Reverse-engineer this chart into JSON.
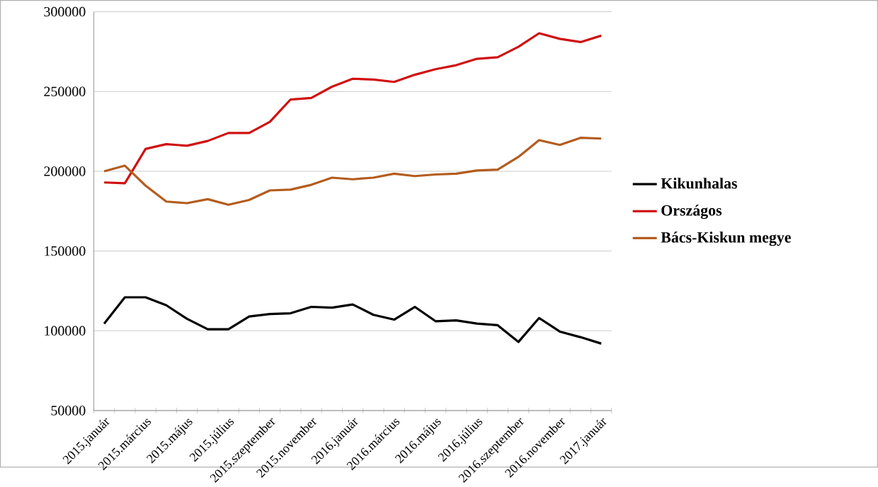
{
  "chart_data": {
    "type": "line",
    "categories": [
      "2015.január",
      null,
      "2015.március",
      null,
      "2015.május",
      null,
      "2015.július",
      null,
      "2015.szeptember",
      null,
      "2015.november",
      null,
      "2016.január",
      null,
      "2016.március",
      null,
      "2016.május",
      null,
      "2016.július",
      null,
      "2016.szeptember",
      null,
      "2016.november",
      null,
      "2017.január"
    ],
    "series": [
      {
        "name": "Kikunhalas",
        "color": "#000000",
        "values": [
          104500,
          121000,
          121000,
          116000,
          107500,
          101000,
          101000,
          109000,
          110500,
          111000,
          115000,
          114500,
          116500,
          110000,
          107000,
          115000,
          106000,
          106500,
          104500,
          103500,
          93000,
          108000,
          99500,
          96000,
          92000
        ]
      },
      {
        "name": "Országos",
        "color": "#d01010",
        "values": [
          193000,
          192500,
          214000,
          217000,
          216000,
          219000,
          224000,
          224000,
          231000,
          245000,
          246000,
          253000,
          258000,
          257500,
          256000,
          260500,
          264000,
          266500,
          270500,
          271500,
          278000,
          286500,
          283000,
          281000,
          285000
        ]
      },
      {
        "name": "Bács-Kiskun megye",
        "color": "#b35c1e",
        "values": [
          200000,
          203500,
          191000,
          181000,
          180000,
          182500,
          179000,
          182000,
          188000,
          188500,
          191500,
          196000,
          195000,
          196000,
          198500,
          197000,
          198000,
          198500,
          200500,
          201000,
          209000,
          219500,
          216500,
          221000,
          220500
        ]
      }
    ],
    "ylim": [
      50000,
      300000
    ],
    "yticks": [
      50000,
      100000,
      150000,
      200000,
      250000,
      300000
    ],
    "grid": "y",
    "legend": "right",
    "marker": "none",
    "line_style": "solid"
  }
}
